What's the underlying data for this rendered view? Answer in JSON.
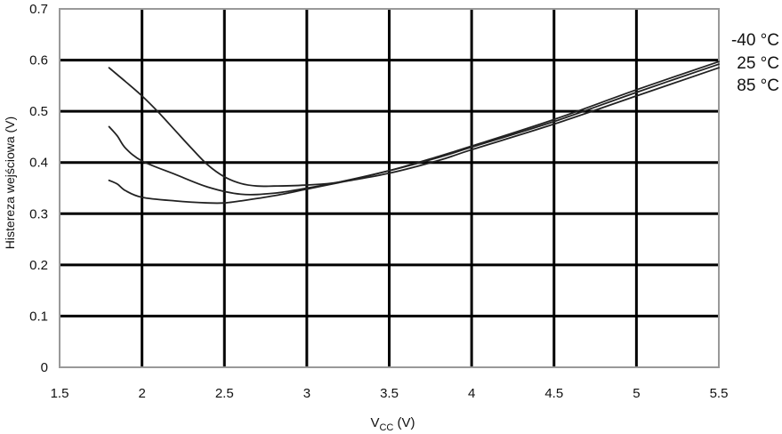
{
  "chart_data": {
    "type": "line",
    "title": "",
    "xlabel": "V",
    "xlabel_sub": "CC",
    "xlabel_unit": " (V)",
    "ylabel": "Histereza wejściowa (V)",
    "xlim": [
      1.5,
      5.5
    ],
    "ylim": [
      0,
      0.7
    ],
    "xticks": [
      1.5,
      2,
      2.5,
      3,
      3.5,
      4,
      4.5,
      5,
      5.5
    ],
    "xtick_labels": [
      "1.5",
      "2",
      "2.5",
      "3",
      "3.5",
      "4",
      "4.5",
      "5",
      "5.5"
    ],
    "yticks": [
      0,
      0.1,
      0.2,
      0.3,
      0.4,
      0.5,
      0.6,
      0.7
    ],
    "ytick_labels": [
      "0",
      "0.1",
      "0.2",
      "0.3",
      "0.4",
      "0.5",
      "0.6",
      "0.7"
    ],
    "grid": true,
    "legend_position": "right",
    "series": [
      {
        "name": "-40 °C",
        "x": [
          1.8,
          1.9,
          2.0,
          2.1,
          2.2,
          2.3,
          2.4,
          2.5,
          2.6,
          2.7,
          2.8,
          3.0,
          3.2,
          3.5,
          3.8,
          4.0,
          4.5,
          5.0,
          5.5
        ],
        "y": [
          0.585,
          0.558,
          0.53,
          0.498,
          0.463,
          0.428,
          0.395,
          0.372,
          0.359,
          0.354,
          0.354,
          0.356,
          0.362,
          0.384,
          0.412,
          0.432,
          0.484,
          0.542,
          0.597
        ]
      },
      {
        "name": "25 °C",
        "x": [
          1.8,
          1.85,
          1.9,
          2.0,
          2.2,
          2.4,
          2.6,
          2.8,
          3.0,
          3.2,
          3.5,
          3.8,
          4.0,
          4.5,
          5.0,
          5.5
        ],
        "y": [
          0.47,
          0.452,
          0.428,
          0.403,
          0.377,
          0.352,
          0.338,
          0.34,
          0.35,
          0.362,
          0.384,
          0.41,
          0.43,
          0.48,
          0.537,
          0.592
        ]
      },
      {
        "name": "85 °C",
        "x": [
          1.8,
          1.85,
          1.9,
          2.0,
          2.2,
          2.4,
          2.5,
          2.6,
          2.8,
          3.0,
          3.2,
          3.5,
          3.8,
          4.0,
          4.5,
          5.0,
          5.5
        ],
        "y": [
          0.365,
          0.358,
          0.345,
          0.332,
          0.325,
          0.321,
          0.321,
          0.325,
          0.335,
          0.348,
          0.361,
          0.379,
          0.404,
          0.425,
          0.475,
          0.53,
          0.585
        ]
      }
    ]
  }
}
